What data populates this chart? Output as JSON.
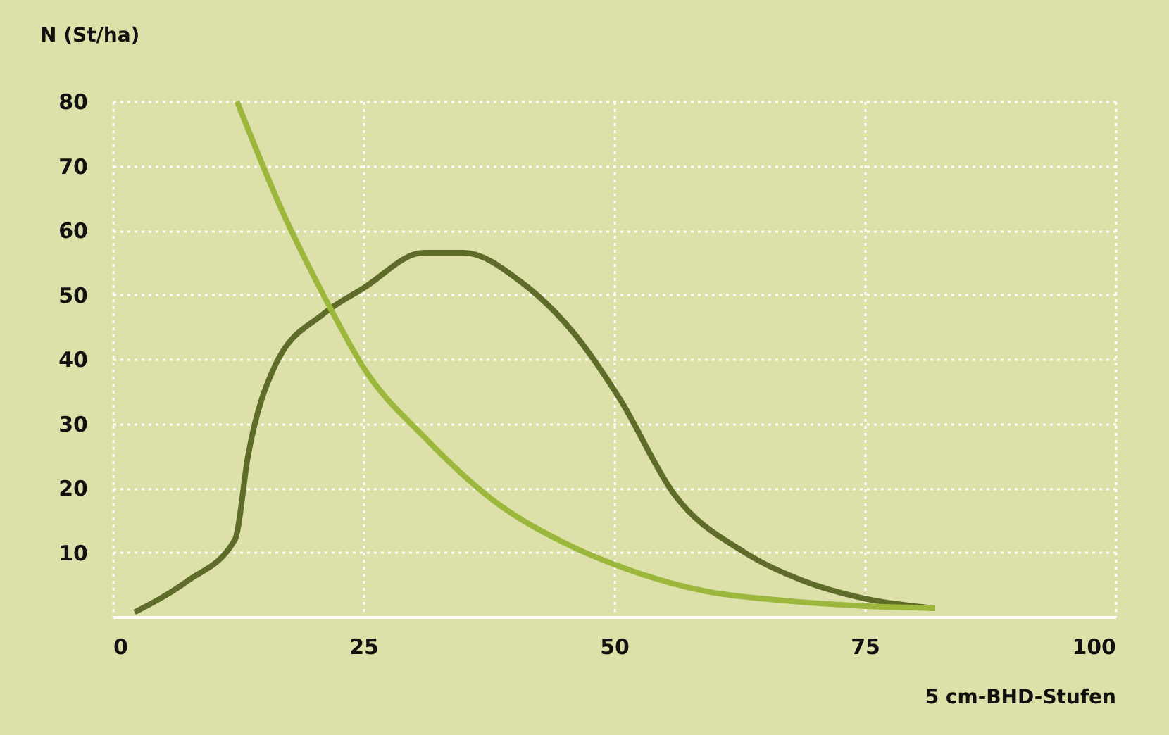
{
  "chart_data": {
    "type": "line",
    "ylabel": "N (St/ha)",
    "xlabel": "5 cm-BHD-Stufen",
    "xlim": [
      0,
      100
    ],
    "ylim": [
      0,
      80
    ],
    "xticks": [
      0,
      25,
      50,
      75,
      100
    ],
    "yticks": [
      10,
      20,
      30,
      40,
      50,
      60,
      70,
      80
    ],
    "grid": true,
    "legend": false,
    "line_style": "solid",
    "marker": "none",
    "series": [
      {
        "color": "#5e6b29",
        "x": [
          2.2,
          7.4,
          12.2,
          13.5,
          16.2,
          21,
          25,
          31,
          35,
          40.7,
          46,
          50.5,
          56,
          63,
          69,
          74.5,
          82
        ],
        "values": [
          0.7,
          5.5,
          12,
          25,
          39,
          47,
          51,
          56.5,
          56.5,
          52,
          44,
          34,
          19,
          10,
          5.5,
          3,
          1.3
        ]
      },
      {
        "color": "#9bb83c",
        "x": [
          12.4,
          16.9,
          21,
          25.3,
          31,
          38,
          45,
          52,
          59,
          67,
          82
        ],
        "values": [
          80,
          63,
          50,
          38,
          28,
          18,
          11.5,
          7,
          4,
          2.5,
          1.3
        ]
      }
    ]
  }
}
